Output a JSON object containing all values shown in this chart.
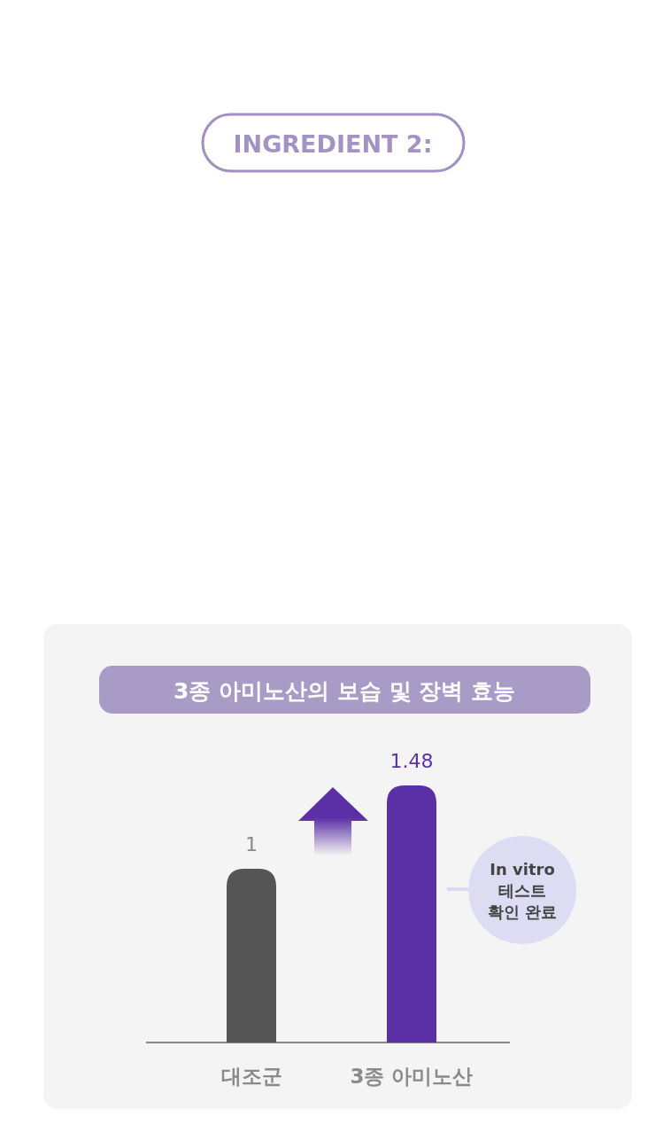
{
  "chart_data": {
    "type": "bar",
    "title": "3종 아미노산의 보습 및 장벽 효능",
    "categories": [
      "대조군",
      "3종 아미노산"
    ],
    "values": [
      1,
      1.48
    ],
    "colors": [
      "#555555",
      "#5b30a6"
    ],
    "data_labels": true,
    "annotations": [
      "INGREDIENT 2:",
      "In vitro\n테스트\n확인 완료"
    ]
  }
}
